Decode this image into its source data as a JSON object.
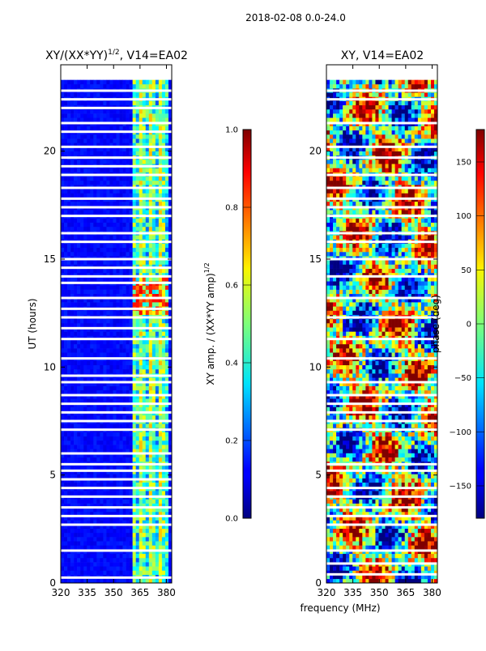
{
  "suptitle": "2018-02-08 0.0-24.0",
  "xlabel_shared": "frequency (MHz)",
  "chart_data": [
    {
      "type": "heatmap",
      "title_main": "XY/(XX*YY)",
      "title_sup": "1/2",
      "title_tail": ", V14=EA02",
      "ylabel": "UT (hours)",
      "xlim": [
        320,
        383
      ],
      "ylim": [
        0,
        24
      ],
      "xticks": [
        320,
        335,
        350,
        365,
        380
      ],
      "yticks": [
        0,
        5,
        10,
        15,
        20
      ],
      "colorbar": {
        "label_main": "XY amp. / (XX*YY amp)",
        "label_sup": "1/2",
        "range": [
          0.0,
          1.0
        ],
        "ticks": [
          "0.0",
          "0.2",
          "0.4",
          "0.6",
          "0.8",
          "1.0"
        ],
        "tick_values": [
          0.0,
          0.2,
          0.4,
          0.6,
          0.8,
          1.0
        ]
      },
      "active_freq_band_MHz": [
        361,
        381
      ],
      "data_top_UT": 23.3,
      "gaps_UT": [
        0.25,
        1.5,
        2.7,
        3.1,
        3.5,
        4.0,
        4.4,
        4.8,
        5.2,
        5.5,
        6.0,
        7.1,
        7.5,
        7.9,
        8.3,
        8.7,
        9.3,
        9.6,
        10.4,
        11.3,
        11.8,
        12.3,
        12.7,
        13.2,
        13.9,
        14.2,
        14.6,
        15.0,
        15.8,
        16.2,
        17.0,
        17.4,
        17.8,
        18.3,
        18.9,
        19.3,
        19.7,
        20.2,
        20.9,
        21.3,
        22.0,
        22.4,
        22.8
      ]
    },
    {
      "type": "heatmap",
      "title": "XY, V14=EA02",
      "xlim": [
        320,
        383
      ],
      "ylim": [
        0,
        24
      ],
      "xticks": [
        320,
        335,
        350,
        365,
        380
      ],
      "yticks": [
        0,
        5,
        10,
        15,
        20
      ],
      "colorbar": {
        "label": "phase (deg)",
        "range": [
          -180,
          180
        ],
        "ticks": [
          "−150",
          "−100",
          "−50",
          "0",
          "50",
          "100",
          "150"
        ],
        "tick_values": [
          -150,
          -100,
          -50,
          0,
          50,
          100,
          150
        ]
      },
      "data_top_UT": 23.3,
      "gaps_UT": [
        0.4,
        0.9,
        1.5,
        2.7,
        3.1,
        3.5,
        4.0,
        4.4,
        5.2,
        5.5,
        7.1,
        7.5,
        7.9,
        8.3,
        8.7,
        9.3,
        10.4,
        11.3,
        12.3,
        13.2,
        14.2,
        15.0,
        15.8,
        16.2,
        17.0,
        17.4,
        17.8,
        18.3,
        18.9,
        19.7,
        20.2,
        21.3,
        22.4,
        22.8
      ]
    }
  ]
}
